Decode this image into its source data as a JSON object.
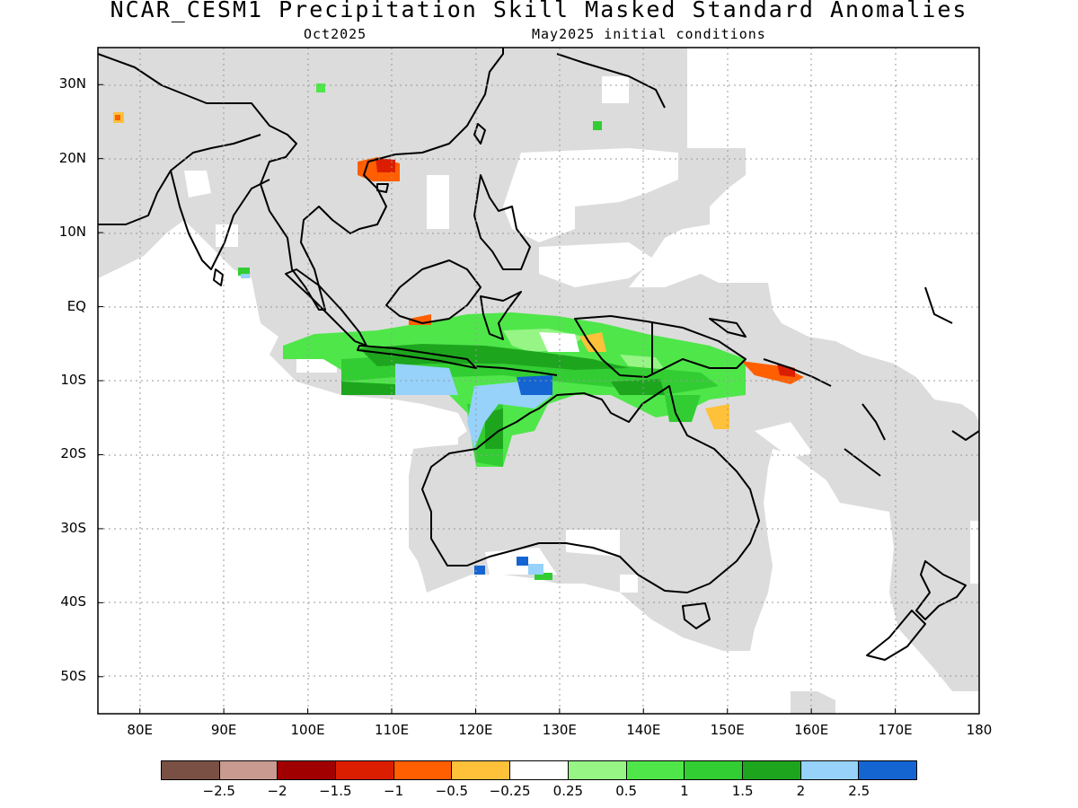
{
  "title": "NCAR_CESM1 Precipitation Skill Masked Standard Anomalies",
  "subtitle_left": "Oct2025",
  "subtitle_right": "May2025 initial conditions",
  "map": {
    "lon_range": [
      75,
      180
    ],
    "lat_range": [
      -55,
      35
    ],
    "lat_labels": [
      {
        "lat": 30,
        "text": "30N"
      },
      {
        "lat": 20,
        "text": "20N"
      },
      {
        "lat": 10,
        "text": "10N"
      },
      {
        "lat": 0,
        "text": "EQ"
      },
      {
        "lat": -10,
        "text": "10S"
      },
      {
        "lat": -20,
        "text": "20S"
      },
      {
        "lat": -30,
        "text": "30S"
      },
      {
        "lat": -40,
        "text": "40S"
      },
      {
        "lat": -50,
        "text": "50S"
      }
    ],
    "lon_labels": [
      {
        "lon": 80,
        "text": "80E"
      },
      {
        "lon": 90,
        "text": "90E"
      },
      {
        "lon": 100,
        "text": "100E"
      },
      {
        "lon": 110,
        "text": "110E"
      },
      {
        "lon": 120,
        "text": "120E"
      },
      {
        "lon": 130,
        "text": "130E"
      },
      {
        "lon": 140,
        "text": "140E"
      },
      {
        "lon": 150,
        "text": "150E"
      },
      {
        "lon": 160,
        "text": "160E"
      },
      {
        "lon": 170,
        "text": "170E"
      },
      {
        "lon": 180,
        "text": "180"
      }
    ]
  },
  "colorbar": {
    "colors": [
      "#7a5044",
      "#c89a90",
      "#a00000",
      "#dc1e00",
      "#ff5f00",
      "#ffc03a",
      "#ffffff",
      "#96f585",
      "#4fe64a",
      "#32cd32",
      "#1ea51e",
      "#96d2fa",
      "#1464d2"
    ],
    "labels": [
      "−2.5",
      "−2",
      "−1.5",
      "−1",
      "−0.5",
      "−0.25",
      "0.25",
      "0.5",
      "1",
      "1.5",
      "2",
      "2.5"
    ]
  },
  "mask_color": "#dcdcdc"
}
